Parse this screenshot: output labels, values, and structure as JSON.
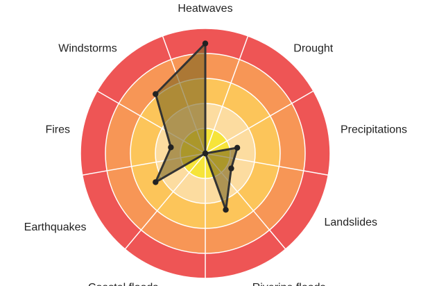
{
  "chart_data": {
    "type": "radar",
    "title": "",
    "axes": [
      "Heatwaves",
      "Drought",
      "Precipitations",
      "Landslides",
      "Riverine floods",
      "Coastal floods",
      "Earthquakes",
      "Fires",
      "Windstorms"
    ],
    "rings": 5,
    "rmax": 5,
    "ring_colors": [
      "#f6e43a",
      "#fcdca0",
      "#fcc55a",
      "#f79656",
      "#ee5555"
    ],
    "grid_line_color": "#ffffff",
    "series": [
      {
        "values": [
          4.4,
          0,
          1.3,
          1.2,
          2.4,
          0,
          2.3,
          1.4,
          3.1
        ],
        "fill": "#7a6420",
        "fill_opacity": 0.6,
        "stroke": "#333333"
      }
    ]
  }
}
